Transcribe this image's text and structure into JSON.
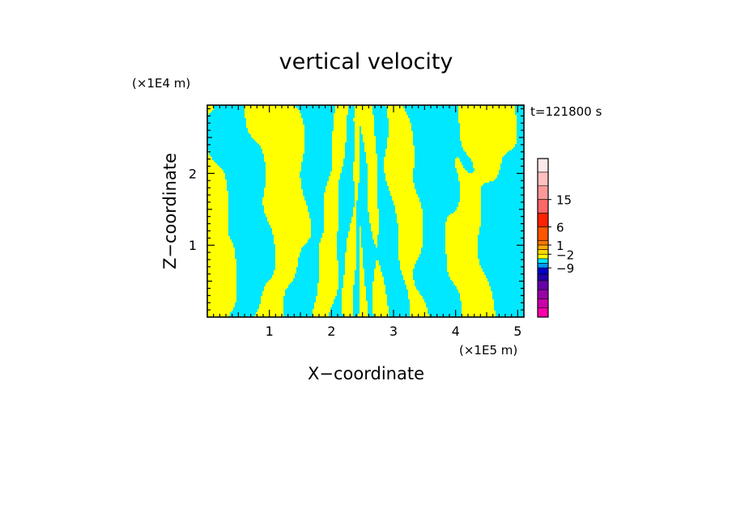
{
  "chart_data": {
    "type": "heatmap",
    "title": "vertical velocity",
    "xlabel": "X−coordinate",
    "ylabel": "Z−coordinate",
    "x_scale_label": "(×1E5 m)",
    "y_scale_label": "(×1E4 m)",
    "time_label": "t=121800 s",
    "xlim": [
      0,
      5.1
    ],
    "ylim": [
      0,
      2.95
    ],
    "x_ticks": [
      1,
      2,
      3,
      4,
      5
    ],
    "x_tick_labels": [
      "1",
      "2",
      "3",
      "4",
      "5"
    ],
    "y_ticks": [
      1,
      2
    ],
    "y_tick_labels": [
      "1",
      "2"
    ],
    "field_colors": {
      "positive": "#ffff00",
      "negative": "#00e8ff"
    },
    "colorbar": {
      "labeled_levels": [
        "15",
        "6",
        "1",
        "−2",
        "−9"
      ],
      "bands": [
        "#ff00aa",
        "#cc00aa",
        "#9900aa",
        "#6600aa",
        "#2200aa",
        "#0000cc",
        "#0099ff",
        "#00e8ff",
        "#ffff00",
        "#ffd700",
        "#ffaa00",
        "#ff7700",
        "#ff5500",
        "#ff2200",
        "#ff6666",
        "#ff9999",
        "#ffc0c0",
        "#ffe8e8"
      ]
    }
  }
}
